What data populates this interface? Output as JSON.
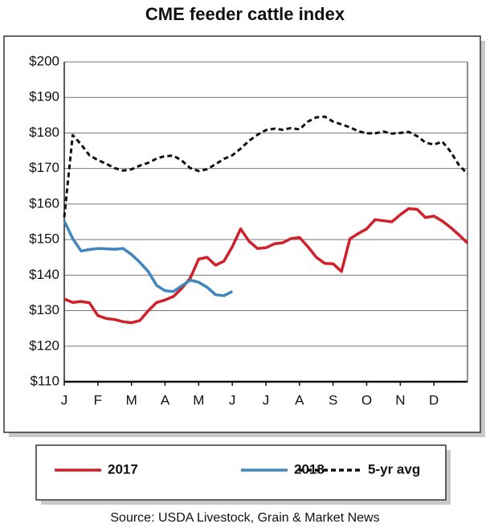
{
  "chart_data": {
    "type": "line",
    "title": "CME feeder cattle index",
    "source": "Source: USDA Livestock, Grain & Market News",
    "x": [
      0,
      0.25,
      0.5,
      0.75,
      1,
      1.25,
      1.5,
      1.75,
      2,
      2.25,
      2.5,
      2.75,
      3,
      3.25,
      3.5,
      3.75,
      4,
      4.25,
      4.5,
      4.75,
      5,
      5.25,
      5.5,
      5.75,
      6,
      6.25,
      6.5,
      6.75,
      7,
      7.25,
      7.5,
      7.75,
      8,
      8.25,
      8.5,
      8.75,
      9,
      9.25,
      9.5,
      9.75,
      10,
      10.25,
      10.5,
      10.75,
      11,
      11.25,
      11.5,
      11.75,
      12
    ],
    "xlim": [
      0,
      12
    ],
    "xticks": [
      {
        "value": 0,
        "label": "J"
      },
      {
        "value": 1,
        "label": "F"
      },
      {
        "value": 2,
        "label": "M"
      },
      {
        "value": 3,
        "label": "A"
      },
      {
        "value": 4,
        "label": "M"
      },
      {
        "value": 5,
        "label": "J"
      },
      {
        "value": 6,
        "label": "J"
      },
      {
        "value": 7,
        "label": "A"
      },
      {
        "value": 8,
        "label": "S"
      },
      {
        "value": 9,
        "label": "O"
      },
      {
        "value": 10,
        "label": "N"
      },
      {
        "value": 11,
        "label": "D"
      }
    ],
    "ylim": [
      110,
      200
    ],
    "yticks": [
      {
        "value": 110,
        "label": "$110"
      },
      {
        "value": 120,
        "label": "$120"
      },
      {
        "value": 130,
        "label": "$130"
      },
      {
        "value": 140,
        "label": "$140"
      },
      {
        "value": 150,
        "label": "$150"
      },
      {
        "value": 160,
        "label": "$160"
      },
      {
        "value": 170,
        "label": "$170"
      },
      {
        "value": 180,
        "label": "$180"
      },
      {
        "value": 190,
        "label": "$190"
      },
      {
        "value": 200,
        "label": "$200"
      }
    ],
    "grid": true,
    "legend": "bottom",
    "series": [
      {
        "name": "2017",
        "color": "#d0202a",
        "dash": false,
        "values": [
          133.3,
          132.3,
          132.6,
          132.2,
          128.6,
          127.8,
          127.5,
          126.9,
          126.6,
          127.2,
          130.0,
          132.3,
          133.0,
          134.0,
          136.3,
          139.2,
          144.5,
          145.0,
          142.8,
          143.9,
          148.0,
          153.0,
          149.5,
          147.5,
          147.7,
          148.8,
          149.1,
          150.3,
          150.6,
          148.0,
          145.0,
          143.3,
          143.2,
          141.0,
          150.2,
          151.7,
          153.0,
          155.6,
          155.3,
          155.0,
          157.0,
          158.7,
          158.5,
          156.2,
          156.6,
          155.2,
          153.4,
          151.3,
          149.0
        ]
      },
      {
        "name": "2018",
        "color": "#3f86bf",
        "dash": false,
        "values": [
          155.2,
          150.3,
          146.8,
          147.2,
          147.5,
          147.4,
          147.3,
          147.5,
          145.8,
          143.6,
          141.0,
          137.1,
          135.6,
          135.4,
          137.0,
          138.6,
          138.0,
          136.6,
          134.5,
          134.2,
          135.4,
          null,
          null,
          null,
          null,
          null,
          null,
          null,
          null,
          null,
          null,
          null,
          null,
          null,
          null,
          null,
          null,
          null,
          null,
          null,
          null,
          null,
          null,
          null,
          null,
          null,
          null,
          null,
          null
        ]
      },
      {
        "name": "5-yr avg",
        "color": "#111111",
        "dash": true,
        "values": [
          156.3,
          179.4,
          176.8,
          173.7,
          172.4,
          171.3,
          170.1,
          169.4,
          169.8,
          170.8,
          171.6,
          172.8,
          173.5,
          173.6,
          172.2,
          170.1,
          169.3,
          169.8,
          171.2,
          172.7,
          173.7,
          175.6,
          177.8,
          179.5,
          180.8,
          181.2,
          180.9,
          181.4,
          181.0,
          183.2,
          184.4,
          184.6,
          183.2,
          182.4,
          181.6,
          180.5,
          179.9,
          179.9,
          180.4,
          179.8,
          180.0,
          180.3,
          179.1,
          177.3,
          176.7,
          177.6,
          174.7,
          170.9,
          168.5
        ]
      }
    ]
  }
}
